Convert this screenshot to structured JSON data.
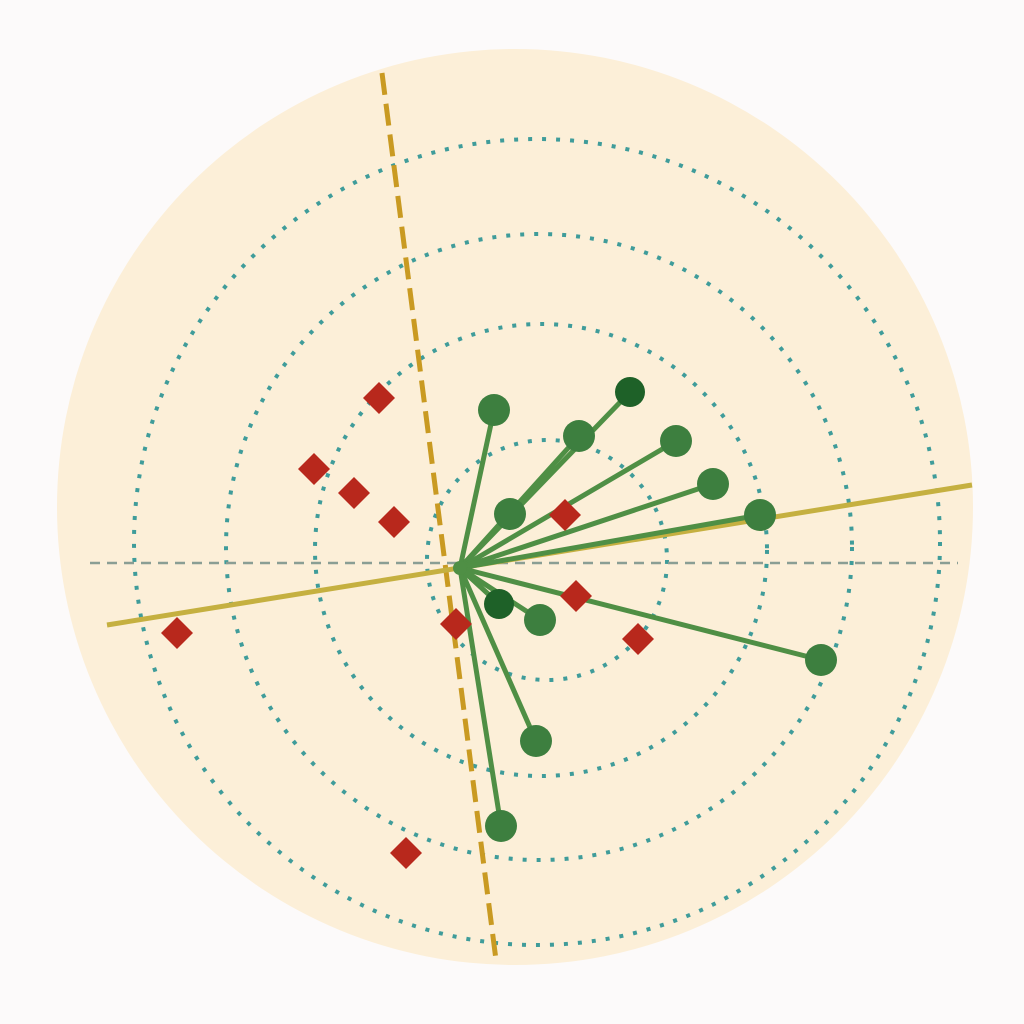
{
  "colors": {
    "background": "#fcfafa",
    "disk": "#fcefd8",
    "dotted_rings": "#3f9c9a",
    "reference_dashed_line": "#c99a22",
    "reference_solid_line": "#c5b040",
    "horizontal_dashed_line": "#8a9e94",
    "green_points": "#3d7f3f",
    "green_points_dark": "#1e6128",
    "green_spokes": "#4f8f45",
    "red_diamonds": "#b8281c"
  },
  "markers": {
    "green": "circle",
    "red": "diamond"
  }
}
